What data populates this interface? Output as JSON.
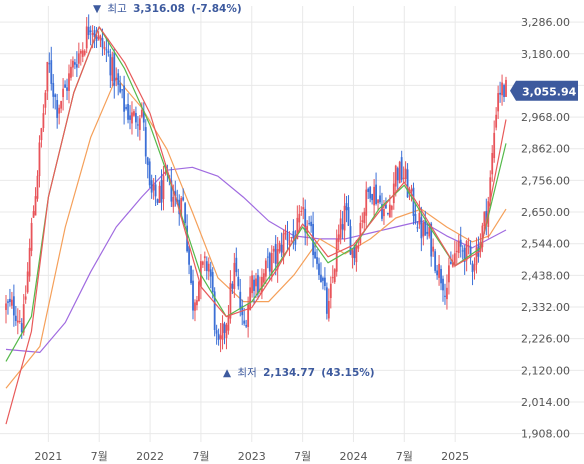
{
  "chart_data": {
    "type": "candlestick",
    "y_axis": {
      "range": [
        1880,
        3340
      ],
      "ticks": [
        "3,286.00",
        "3,180.00",
        "3,074.00",
        "2,968.00",
        "2,862.00",
        "2,756.00",
        "2,650.00",
        "2,544.00",
        "2,438.00",
        "2,332.00",
        "2,226.00",
        "2,120.00",
        "2,014.00",
        "1,908.00"
      ],
      "tick_values": [
        3286,
        3180,
        3074,
        2968,
        2862,
        2756,
        2650,
        2544,
        2438,
        2332,
        2226,
        2120,
        2014,
        1908
      ]
    },
    "x_axis": {
      "ticks": [
        "2021",
        "7월",
        "2022",
        "7월",
        "2023",
        "7월",
        "2024",
        "7월",
        "2025"
      ],
      "tick_dates": [
        "2021-01",
        "2021-07",
        "2022-01",
        "2022-07",
        "2023-01",
        "2023-07",
        "2024-01",
        "2024-07",
        "2025-01"
      ]
    },
    "date_range": [
      "2020-08",
      "2025-07"
    ],
    "annotations": {
      "high": {
        "arrow": "▼",
        "label": "최고",
        "value": "3,316.08",
        "change": "(-7.84%)",
        "date": "2021-06"
      },
      "low": {
        "arrow": "▲",
        "label": "최저",
        "value": "2,134.77",
        "change": "(43.15%)",
        "date": "2022-09"
      }
    },
    "current": {
      "value": "3,055.94",
      "numeric": 3055.94
    },
    "colors": {
      "up": "#e8545a",
      "down": "#3b6fd6",
      "ma5": "#e85a5a",
      "ma20": "#55b94a",
      "ma60": "#f5a05a",
      "ma120": "#a06be0",
      "grid": "#e9e9e9",
      "badge": "#3d5a9e"
    },
    "monthly_closes": [
      [
        "2020-08",
        2330
      ],
      [
        "2020-09",
        2330
      ],
      [
        "2020-10",
        2270
      ],
      [
        "2020-11",
        2590
      ],
      [
        "2020-12",
        2870
      ],
      [
        "2021-01",
        3150
      ],
      [
        "2021-02",
        3000
      ],
      [
        "2021-03",
        3060
      ],
      [
        "2021-04",
        3150
      ],
      [
        "2021-05",
        3200
      ],
      [
        "2021-06",
        3290
      ],
      [
        "2021-07",
        3220
      ],
      [
        "2021-08",
        3180
      ],
      [
        "2021-09",
        3080
      ],
      [
        "2021-10",
        3000
      ],
      [
        "2021-11",
        2960
      ],
      [
        "2021-12",
        3000
      ],
      [
        "2022-01",
        2700
      ],
      [
        "2022-02",
        2700
      ],
      [
        "2022-03",
        2750
      ],
      [
        "2022-04",
        2690
      ],
      [
        "2022-05",
        2680
      ],
      [
        "2022-06",
        2340
      ],
      [
        "2022-07",
        2450
      ],
      [
        "2022-08",
        2480
      ],
      [
        "2022-09",
        2170
      ],
      [
        "2022-10",
        2290
      ],
      [
        "2022-11",
        2470
      ],
      [
        "2022-12",
        2250
      ],
      [
        "2023-01",
        2430
      ],
      [
        "2023-02",
        2410
      ],
      [
        "2023-03",
        2480
      ],
      [
        "2023-04",
        2500
      ],
      [
        "2023-05",
        2580
      ],
      [
        "2023-06",
        2560
      ],
      [
        "2023-07",
        2630
      ],
      [
        "2023-08",
        2560
      ],
      [
        "2023-09",
        2470
      ],
      [
        "2023-10",
        2300
      ],
      [
        "2023-11",
        2530
      ],
      [
        "2023-12",
        2650
      ],
      [
        "2024-01",
        2500
      ],
      [
        "2024-02",
        2640
      ],
      [
        "2024-03",
        2740
      ],
      [
        "2024-04",
        2690
      ],
      [
        "2024-05",
        2630
      ],
      [
        "2024-06",
        2790
      ],
      [
        "2024-07",
        2770
      ],
      [
        "2024-08",
        2670
      ],
      [
        "2024-09",
        2590
      ],
      [
        "2024-10",
        2560
      ],
      [
        "2024-11",
        2460
      ],
      [
        "2024-12",
        2400
      ],
      [
        "2025-01",
        2510
      ],
      [
        "2025-02",
        2530
      ],
      [
        "2025-03",
        2480
      ],
      [
        "2025-04",
        2560
      ],
      [
        "2025-05",
        2700
      ],
      [
        "2025-06",
        3060
      ],
      [
        "2025-07",
        3056
      ]
    ],
    "moving_averages": {
      "ma5": [
        [
          "2020-08",
          1940
        ],
        [
          "2020-11",
          2250
        ],
        [
          "2021-01",
          2700
        ],
        [
          "2021-04",
          3050
        ],
        [
          "2021-07",
          3270
        ],
        [
          "2021-10",
          3150
        ],
        [
          "2022-01",
          2980
        ],
        [
          "2022-04",
          2700
        ],
        [
          "2022-07",
          2400
        ],
        [
          "2022-10",
          2300
        ],
        [
          "2023-01",
          2330
        ],
        [
          "2023-04",
          2460
        ],
        [
          "2023-07",
          2610
        ],
        [
          "2023-10",
          2500
        ],
        [
          "2024-01",
          2540
        ],
        [
          "2024-04",
          2650
        ],
        [
          "2024-07",
          2750
        ],
        [
          "2024-10",
          2610
        ],
        [
          "2025-01",
          2470
        ],
        [
          "2025-04",
          2520
        ],
        [
          "2025-07",
          2960
        ]
      ],
      "ma20": [
        [
          "2020-08",
          2150
        ],
        [
          "2020-11",
          2300
        ],
        [
          "2021-01",
          2700
        ],
        [
          "2021-04",
          3050
        ],
        [
          "2021-07",
          3270
        ],
        [
          "2021-10",
          3130
        ],
        [
          "2022-01",
          2940
        ],
        [
          "2022-04",
          2700
        ],
        [
          "2022-07",
          2440
        ],
        [
          "2022-10",
          2300
        ],
        [
          "2023-01",
          2350
        ],
        [
          "2023-04",
          2470
        ],
        [
          "2023-07",
          2600
        ],
        [
          "2023-10",
          2480
        ],
        [
          "2024-01",
          2530
        ],
        [
          "2024-04",
          2660
        ],
        [
          "2024-07",
          2740
        ],
        [
          "2024-10",
          2600
        ],
        [
          "2025-01",
          2470
        ],
        [
          "2025-04",
          2530
        ],
        [
          "2025-07",
          2880
        ]
      ],
      "ma60": [
        [
          "2020-08",
          2060
        ],
        [
          "2020-12",
          2200
        ],
        [
          "2021-03",
          2600
        ],
        [
          "2021-06",
          2900
        ],
        [
          "2021-09",
          3100
        ],
        [
          "2021-12",
          3000
        ],
        [
          "2022-03",
          2860
        ],
        [
          "2022-06",
          2650
        ],
        [
          "2022-09",
          2430
        ],
        [
          "2022-12",
          2350
        ],
        [
          "2023-03",
          2350
        ],
        [
          "2023-06",
          2440
        ],
        [
          "2023-09",
          2560
        ],
        [
          "2023-12",
          2510
        ],
        [
          "2024-03",
          2560
        ],
        [
          "2024-06",
          2630
        ],
        [
          "2024-09",
          2660
        ],
        [
          "2024-12",
          2600
        ],
        [
          "2025-03",
          2550
        ],
        [
          "2025-05",
          2570
        ],
        [
          "2025-07",
          2660
        ]
      ],
      "ma120": [
        [
          "2020-08",
          2190
        ],
        [
          "2020-12",
          2180
        ],
        [
          "2021-03",
          2280
        ],
        [
          "2021-06",
          2450
        ],
        [
          "2021-09",
          2600
        ],
        [
          "2021-12",
          2700
        ],
        [
          "2022-03",
          2790
        ],
        [
          "2022-06",
          2800
        ],
        [
          "2022-09",
          2770
        ],
        [
          "2022-12",
          2700
        ],
        [
          "2023-03",
          2620
        ],
        [
          "2023-06",
          2570
        ],
        [
          "2023-09",
          2560
        ],
        [
          "2023-12",
          2560
        ],
        [
          "2024-03",
          2580
        ],
        [
          "2024-06",
          2600
        ],
        [
          "2024-09",
          2620
        ],
        [
          "2024-12",
          2570
        ],
        [
          "2025-03",
          2530
        ],
        [
          "2025-07",
          2590
        ]
      ]
    }
  }
}
